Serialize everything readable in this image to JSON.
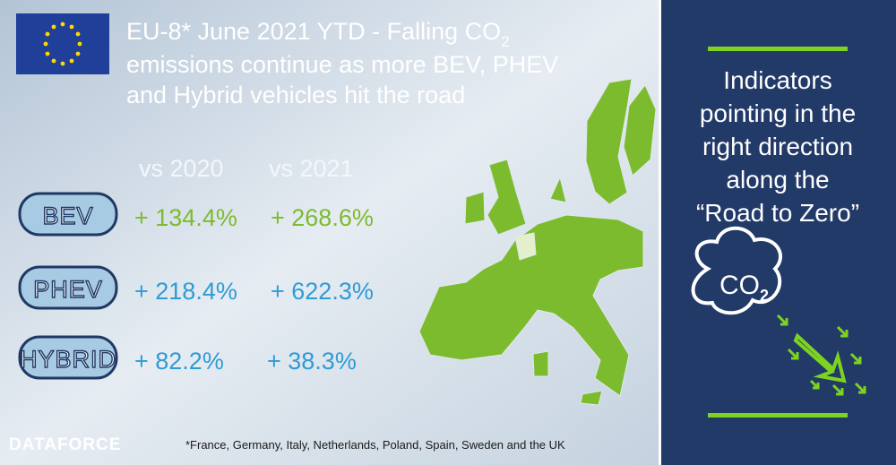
{
  "title": {
    "lines": [
      "EU-8* June 2021 YTD - Falling CO",
      "emissions continue as more BEV, PHEV",
      "and Hybrid vehicles hit the road"
    ],
    "subscript": "2"
  },
  "table": {
    "columns": [
      "vs 2020",
      "vs 2021"
    ],
    "rows": [
      [
        "BEV",
        "+ 134.4%",
        "+ 268.6%"
      ],
      [
        "PHEV",
        "+ 218.4%",
        "+ 622.3%"
      ],
      [
        "HYBRID",
        "+ 82.2%",
        "+ 38.3%"
      ]
    ]
  },
  "sidebar": {
    "lines": [
      "Indicators",
      "pointing in the",
      "right direction",
      "along the",
      "“Road to Zero”"
    ],
    "icon_text": "CO",
    "icon_subscript": "2"
  },
  "footnote": "*France, Germany, Italy, Netherlands, Poland, Spain, Sweden and the UK",
  "logo": "DATAFORCE"
}
